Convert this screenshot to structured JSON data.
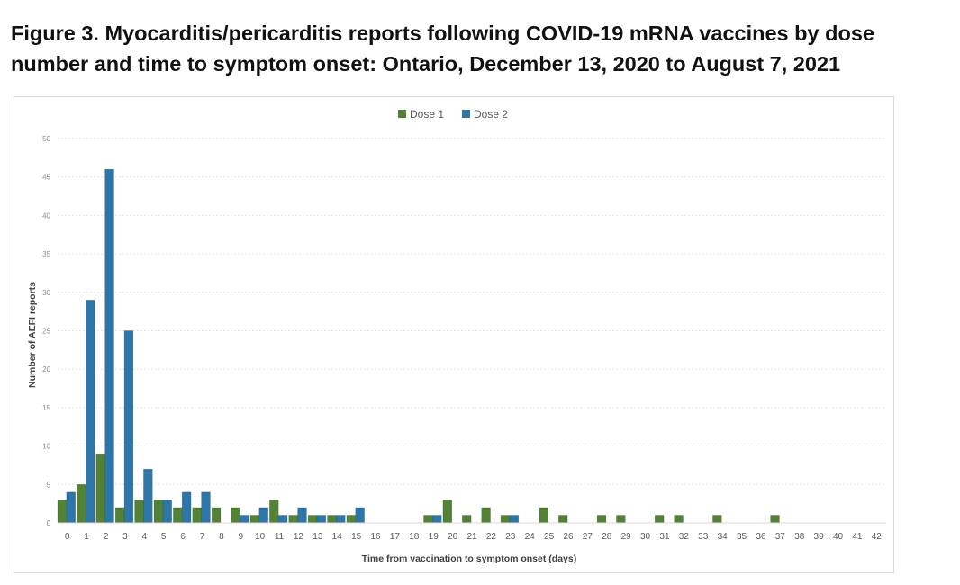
{
  "figure": {
    "title": "Figure 3. Myocarditis/pericarditis reports following COVID-19 mRNA vaccines by dose number and time to symptom onset: Ontario, December 13, 2020 to August 7, 2021"
  },
  "chart_data": {
    "type": "bar",
    "title": "",
    "xlabel": "Time from vaccination to symptom onset (days)",
    "ylabel": "Number of AEFI reports",
    "ylim": [
      0,
      50
    ],
    "yticks": [
      0,
      5,
      10,
      15,
      20,
      25,
      30,
      35,
      40,
      45,
      50
    ],
    "grid": true,
    "legend_position": "top-center",
    "categories": [
      "0",
      "1",
      "2",
      "3",
      "4",
      "5",
      "6",
      "7",
      "8",
      "9",
      "10",
      "11",
      "12",
      "13",
      "14",
      "15",
      "16",
      "17",
      "18",
      "19",
      "20",
      "21",
      "22",
      "23",
      "24",
      "25",
      "26",
      "27",
      "28",
      "29",
      "30",
      "31",
      "32",
      "33",
      "34",
      "35",
      "36",
      "37",
      "38",
      "39",
      "40",
      "41",
      "42"
    ],
    "series": [
      {
        "name": "Dose 1",
        "color": "#538135",
        "values": [
          3,
          5,
          9,
          2,
          3,
          3,
          2,
          2,
          2,
          2,
          1,
          3,
          1,
          1,
          1,
          1,
          0,
          0,
          0,
          1,
          3,
          1,
          2,
          1,
          0,
          2,
          1,
          0,
          1,
          1,
          0,
          1,
          1,
          0,
          1,
          0,
          0,
          1,
          0,
          0,
          0,
          0,
          0
        ]
      },
      {
        "name": "Dose 2",
        "color": "#2e75a8",
        "values": [
          4,
          29,
          46,
          25,
          7,
          3,
          4,
          4,
          0,
          1,
          2,
          1,
          2,
          1,
          1,
          2,
          0,
          0,
          0,
          1,
          0,
          0,
          0,
          1,
          0,
          0,
          0,
          0,
          0,
          0,
          0,
          0,
          0,
          0,
          0,
          0,
          0,
          0,
          0,
          0,
          0,
          0,
          0
        ]
      }
    ]
  }
}
